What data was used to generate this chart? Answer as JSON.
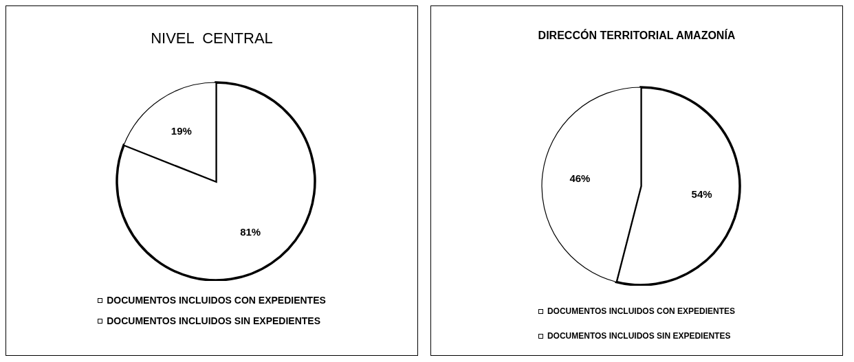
{
  "chart_data": [
    {
      "type": "pie",
      "title": "NIVEL  CENTRAL",
      "categories": [
        "DOCUMENTOS INCLUIDOS CON EXPEDIENTES",
        "DOCUMENTOS INCLUIDOS SIN EXPEDIENTES"
      ],
      "values": [
        81,
        19
      ],
      "value_labels": [
        "81%",
        "19%"
      ],
      "colors": [
        "#ffffff",
        "#ffffff"
      ],
      "legend": "bottom"
    },
    {
      "type": "pie",
      "title": "DIRECCÓN TERRITORIAL AMAZONÍA",
      "categories": [
        "DOCUMENTOS INCLUIDOS CON EXPEDIENTES",
        "DOCUMENTOS INCLUIDOS SIN EXPEDIENTES"
      ],
      "values": [
        54,
        46
      ],
      "value_labels": [
        "54%",
        "46%"
      ],
      "colors": [
        "#ffffff",
        "#ffffff"
      ],
      "legend": "bottom"
    }
  ]
}
